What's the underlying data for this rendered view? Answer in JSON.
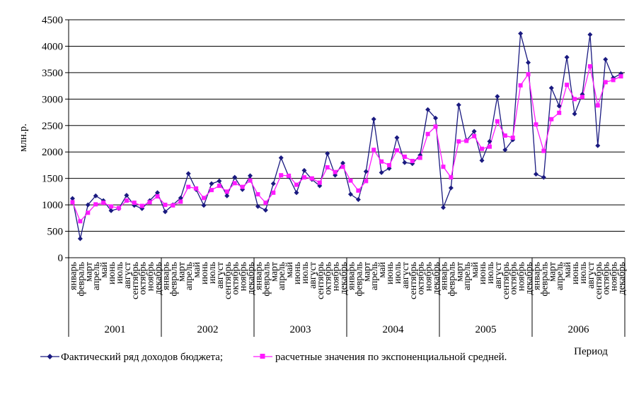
{
  "chart_data": {
    "type": "line",
    "ylabel": "млн.р.",
    "xlabel": "Период",
    "ylim": [
      0,
      4500
    ],
    "yticks": [
      0,
      500,
      1000,
      1500,
      2000,
      2500,
      3000,
      3500,
      4000,
      4500
    ],
    "grid": "horizontal",
    "legend_position": "bottom",
    "months": [
      "январь",
      "февраль",
      "март",
      "апрель",
      "май",
      "июнь",
      "июль",
      "август",
      "сентябрь",
      "октябрь",
      "ноябрь",
      "декабрь"
    ],
    "years": [
      "2001",
      "2002",
      "2003",
      "2004",
      "2005",
      "2006"
    ],
    "series": [
      {
        "name": "Фактический ряд доходов бюджета;",
        "color": "#1a1a80",
        "marker": "diamond",
        "values": [
          1120,
          360,
          1000,
          1170,
          1080,
          890,
          930,
          1180,
          990,
          930,
          1080,
          1230,
          870,
          1000,
          1130,
          1590,
          1290,
          990,
          1400,
          1450,
          1170,
          1520,
          1290,
          1550,
          970,
          900,
          1400,
          1890,
          1530,
          1230,
          1650,
          1480,
          1360,
          1970,
          1560,
          1790,
          1200,
          1100,
          1630,
          2620,
          1610,
          1690,
          2270,
          1800,
          1780,
          1940,
          2800,
          2640,
          950,
          1320,
          2890,
          2220,
          2390,
          1840,
          2200,
          3050,
          2040,
          2230,
          4240,
          3690,
          1580,
          1520,
          3210,
          2870,
          3790,
          2720,
          3090,
          4220,
          2120,
          3750,
          3400,
          3480
        ]
      },
      {
        "name": "расчетные значения по экспоненциальной средней.",
        "color": "#ff1aff",
        "marker": "square",
        "values": [
          1050,
          690,
          850,
          1010,
          1040,
          970,
          940,
          1080,
          1040,
          980,
          1050,
          1160,
          1000,
          990,
          1060,
          1340,
          1310,
          1130,
          1280,
          1360,
          1250,
          1410,
          1340,
          1460,
          1200,
          1040,
          1230,
          1560,
          1550,
          1380,
          1520,
          1500,
          1420,
          1710,
          1620,
          1720,
          1460,
          1270,
          1450,
          2040,
          1820,
          1750,
          2030,
          1910,
          1830,
          1890,
          2340,
          2480,
          1720,
          1520,
          2200,
          2210,
          2300,
          2060,
          2100,
          2580,
          2310,
          2270,
          3260,
          3470,
          2520,
          2020,
          2620,
          2740,
          3270,
          3000,
          3040,
          3620,
          2880,
          3320,
          3360,
          3430
        ]
      }
    ]
  }
}
